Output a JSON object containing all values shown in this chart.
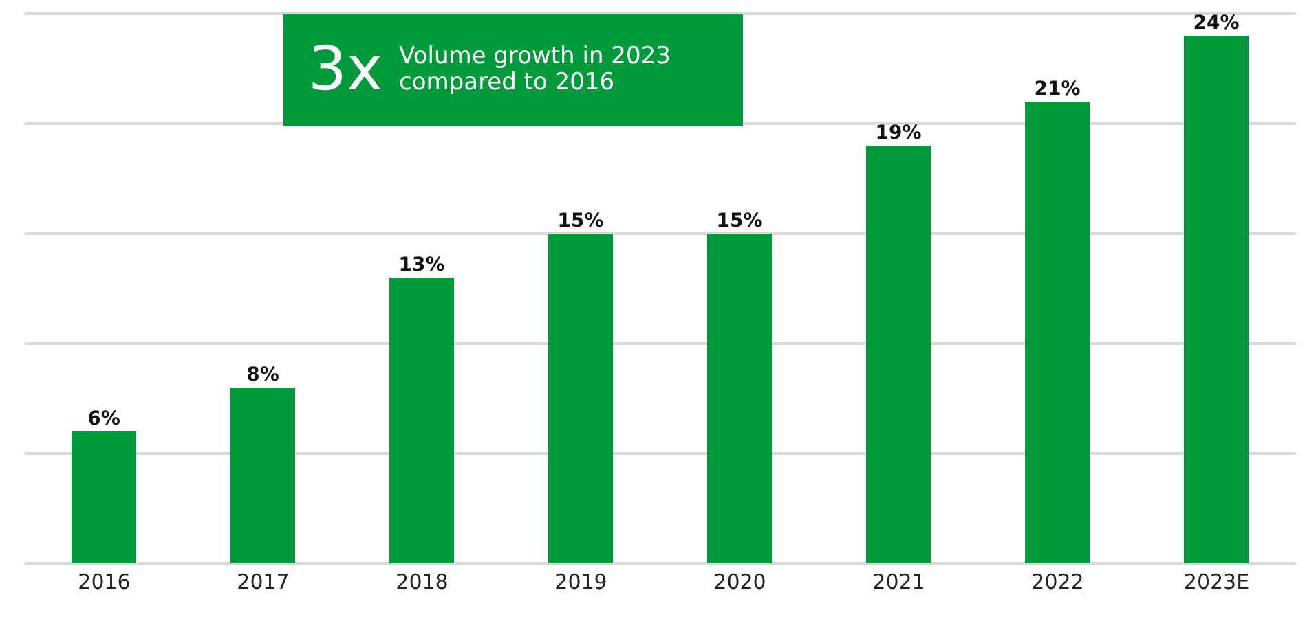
{
  "chart_data": {
    "type": "bar",
    "categories": [
      "2016",
      "2017",
      "2018",
      "2019",
      "2020",
      "2021",
      "2022",
      "2023E"
    ],
    "values": [
      6,
      8,
      13,
      15,
      15,
      19,
      21,
      24
    ],
    "value_labels": [
      "6%",
      "8%",
      "13%",
      "15%",
      "15%",
      "19%",
      "21%",
      "24%"
    ],
    "color": "#009a3c",
    "ylim": [
      0,
      25
    ],
    "yticks": [
      0,
      5,
      10,
      15,
      20,
      25
    ],
    "grid": "y",
    "tick_labels": "x",
    "annotations": [
      "3x",
      "Volume growth in 2023 compared to 2016"
    ]
  }
}
